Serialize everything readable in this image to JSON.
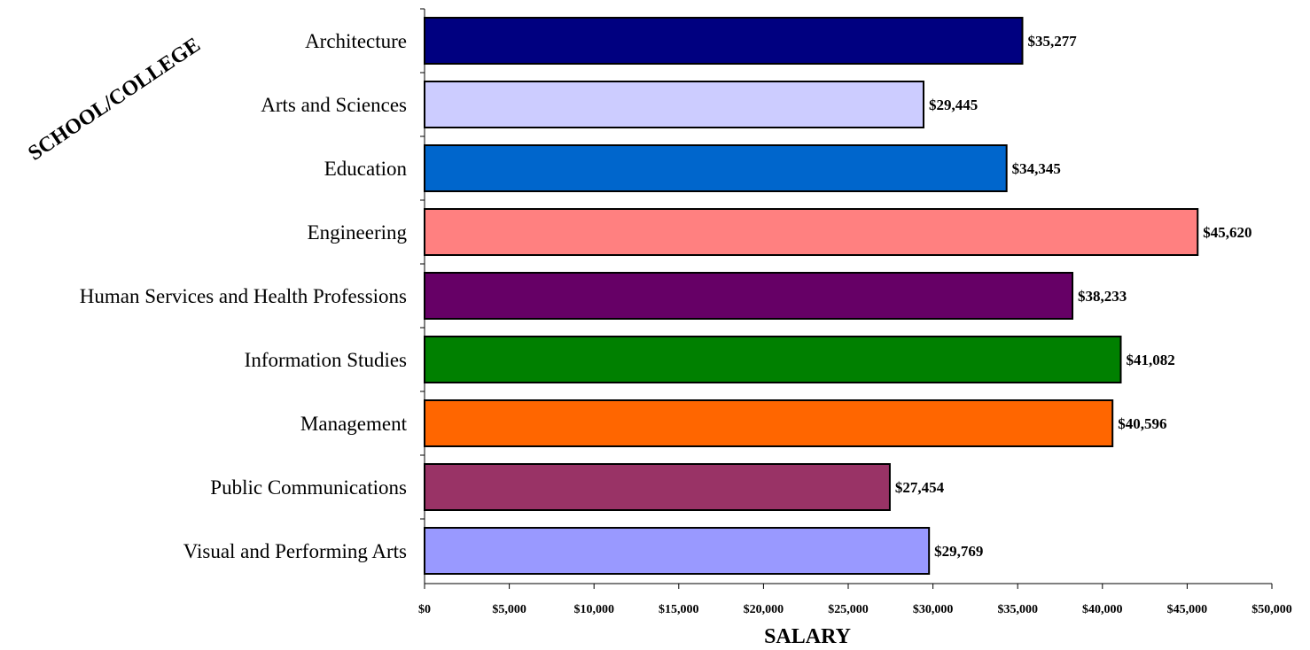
{
  "chart_data": {
    "type": "bar",
    "orientation": "horizontal",
    "categories": [
      "Architecture",
      "Arts and Sciences",
      "Education",
      "Engineering",
      "Human Services and Health Professions",
      "Information Studies",
      "Management",
      "Public Communications",
      "Visual and Performing Arts"
    ],
    "values": [
      35277,
      29445,
      34345,
      45620,
      38233,
      41082,
      40596,
      27454,
      29769
    ],
    "value_labels": [
      "$35,277",
      "$29,445",
      "$34,345",
      "$45,620",
      "$38,233",
      "$41,082",
      "$40,596",
      "$27,454",
      "$29,769"
    ],
    "bar_colors": [
      "#000080",
      "#ccccff",
      "#0066cc",
      "#ff8080",
      "#660066",
      "#008000",
      "#ff6600",
      "#993366",
      "#9999ff"
    ],
    "xlabel": "SALARY",
    "ylabel": "SCHOOL/COLLEGE",
    "xlim": [
      0,
      50000
    ],
    "xticks": [
      0,
      5000,
      10000,
      15000,
      20000,
      25000,
      30000,
      35000,
      40000,
      45000,
      50000
    ],
    "xtick_labels": [
      "$0",
      "$5,000",
      "$10,000",
      "$15,000",
      "$20,000",
      "$25,000",
      "$30,000",
      "$35,000",
      "$40,000",
      "$45,000",
      "$50,000"
    ],
    "grid": false,
    "legend": "none"
  }
}
